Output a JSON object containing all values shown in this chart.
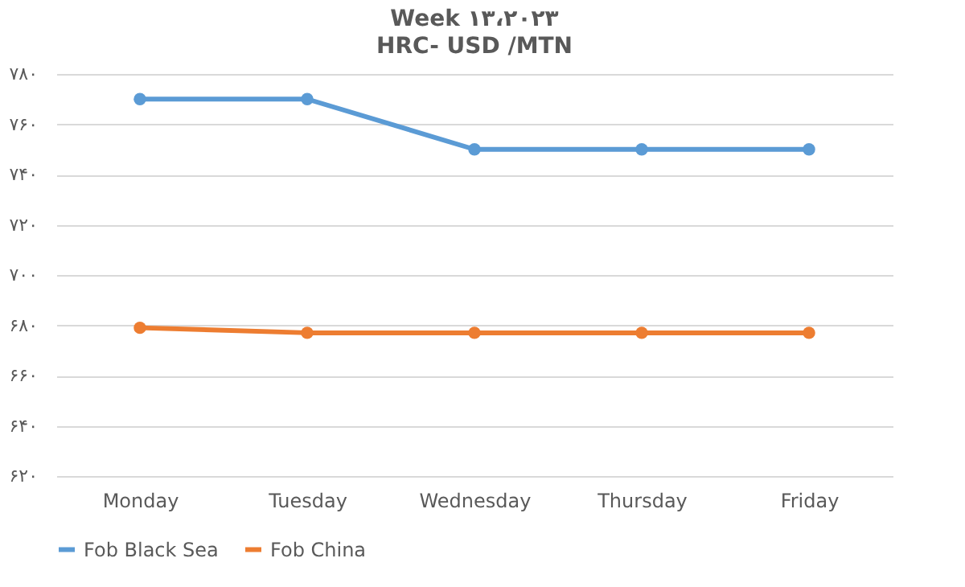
{
  "chart_data": {
    "type": "line",
    "title": "Week ۱۳،۲۰۲۳",
    "subtitle": "HRC- USD /MTN",
    "categories": [
      "Monday",
      "Tuesday",
      "Wednesday",
      "Thursday",
      "Friday"
    ],
    "series": [
      {
        "name": "Fob Black Sea",
        "color": "#5b9bd5",
        "values": [
          770,
          770,
          750,
          750,
          750
        ]
      },
      {
        "name": "Fob China",
        "color": "#ed7d31",
        "values": [
          679,
          677,
          677,
          677,
          677
        ]
      }
    ],
    "ylim": [
      620,
      780
    ],
    "yticks": [
      {
        "value": 620,
        "label": "۶۲۰"
      },
      {
        "value": 640,
        "label": "۶۴۰"
      },
      {
        "value": 660,
        "label": "۶۶۰"
      },
      {
        "value": 680,
        "label": "۶۸۰"
      },
      {
        "value": 700,
        "label": "۷۰۰"
      },
      {
        "value": 720,
        "label": "۷۲۰"
      },
      {
        "value": 740,
        "label": "۷۴۰"
      },
      {
        "value": 760,
        "label": "۷۶۰"
      },
      {
        "value": 780,
        "label": "۷۸۰"
      }
    ],
    "grid": "y",
    "legend": "bottom",
    "marker": "circle",
    "line_style": "solid"
  }
}
